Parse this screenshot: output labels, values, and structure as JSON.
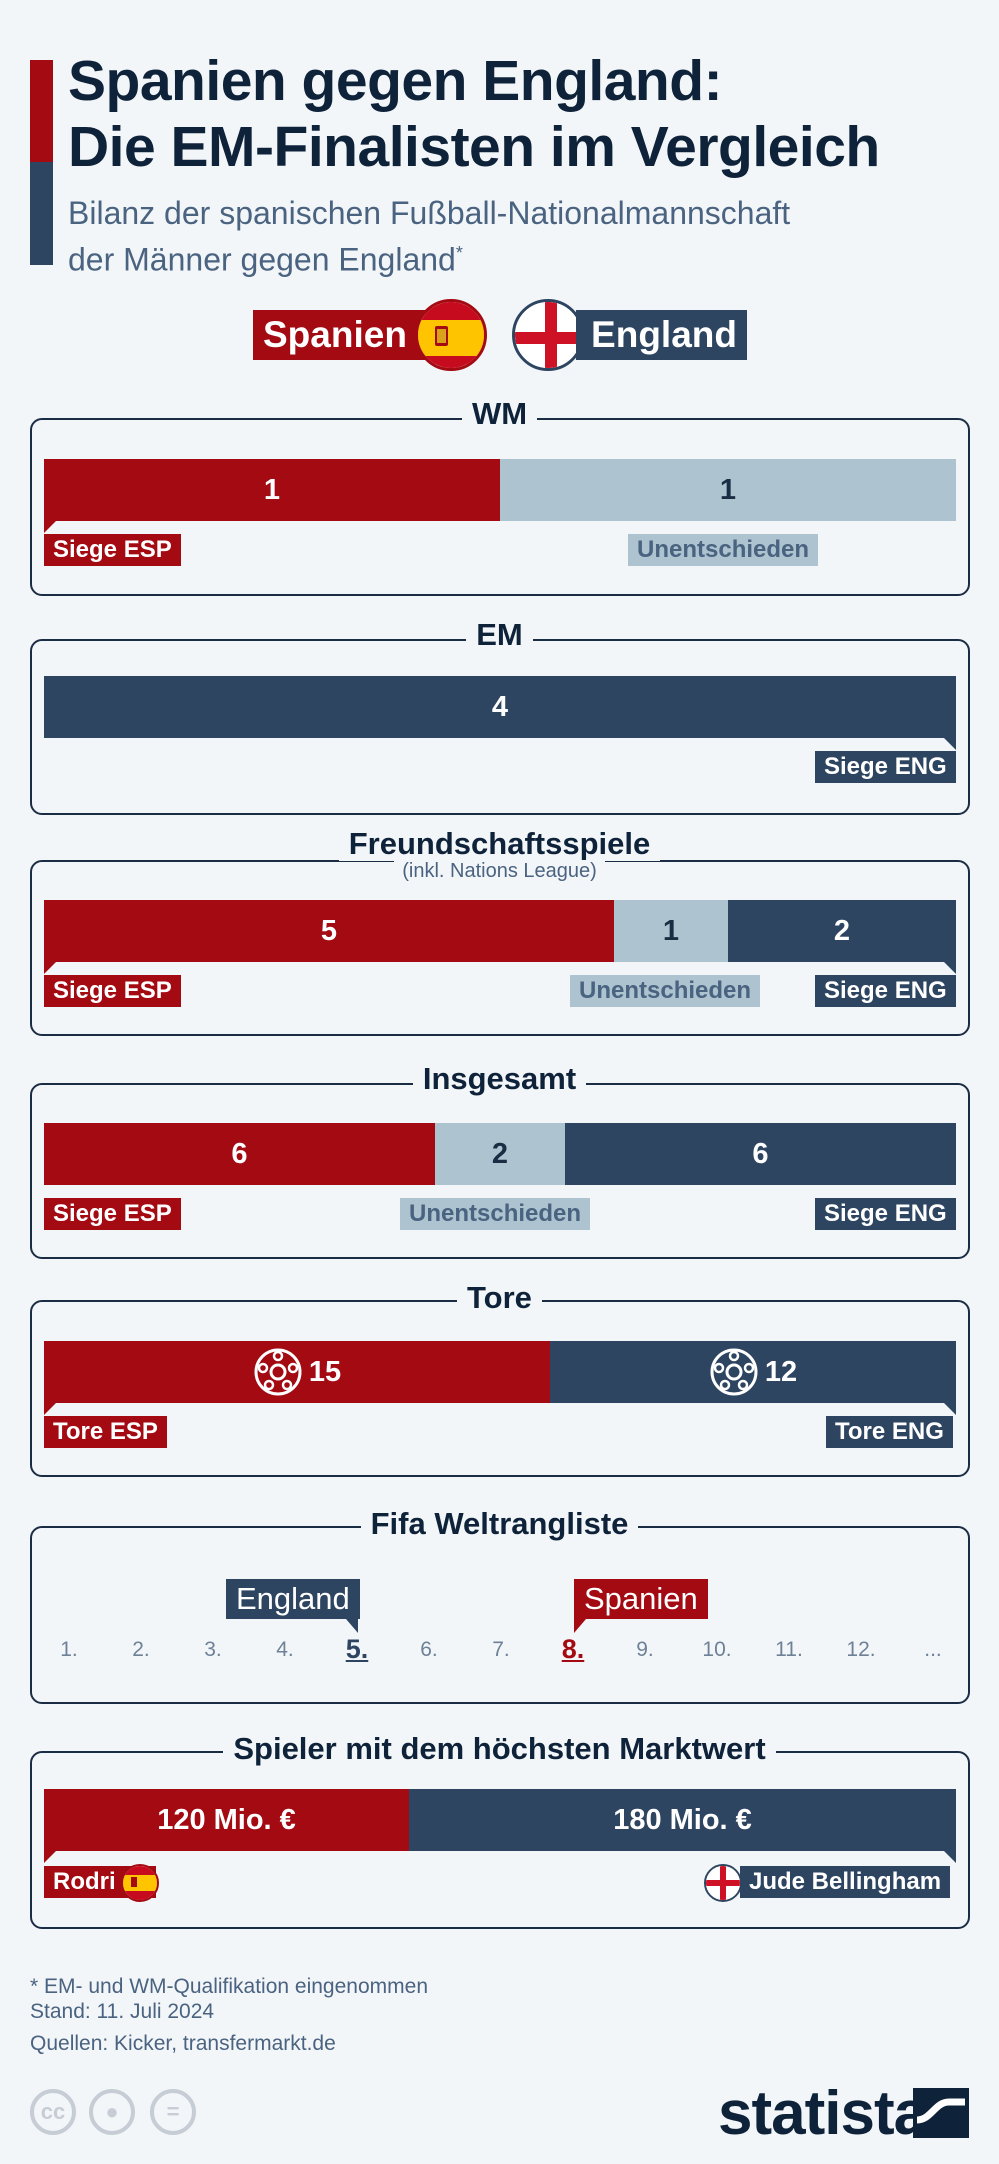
{
  "header": {
    "title_line1": "Spanien gegen England:",
    "title_line2": "Die EM-Finalisten im Vergleich",
    "subtitle_line1": "Bilanz der spanischen Fußball-Nationalmannschaft",
    "subtitle_line2": "der Männer gegen England",
    "subtitle_mark": "*"
  },
  "teams": {
    "esp": "Spanien",
    "eng": "England"
  },
  "labels": {
    "wins_esp": "Siege ESP",
    "wins_eng": "Siege ENG",
    "draws": "Unentschieden",
    "goals_esp": "Tore ESP",
    "goals_eng": "Tore ENG"
  },
  "colors": {
    "esp": "#a30a12",
    "draw": "#adc3cf",
    "eng": "#2e4561"
  },
  "chart_data": [
    {
      "type": "bar",
      "title": "WM",
      "categories": [
        "Siege ESP",
        "Unentschieden",
        "Siege ENG"
      ],
      "values": [
        1,
        1,
        0
      ]
    },
    {
      "type": "bar",
      "title": "EM",
      "categories": [
        "Siege ESP",
        "Unentschieden",
        "Siege ENG"
      ],
      "values": [
        0,
        0,
        4
      ]
    },
    {
      "type": "bar",
      "title": "Freundschaftsspiele",
      "subtitle": "(inkl. Nations League)",
      "categories": [
        "Siege ESP",
        "Unentschieden",
        "Siege ENG"
      ],
      "values": [
        5,
        1,
        2
      ]
    },
    {
      "type": "bar",
      "title": "Insgesamt",
      "categories": [
        "Siege ESP",
        "Unentschieden",
        "Siege ENG"
      ],
      "values": [
        6,
        2,
        6
      ]
    },
    {
      "type": "bar",
      "title": "Tore",
      "categories": [
        "Tore ESP",
        "Tore ENG"
      ],
      "values": [
        15,
        12
      ]
    },
    {
      "type": "table",
      "title": "Fifa Weltrangliste",
      "ticks": [
        "1.",
        "2.",
        "3.",
        "4.",
        "5.",
        "6.",
        "7.",
        "8.",
        "9.",
        "10.",
        "11.",
        "12.",
        "..."
      ],
      "rank_eng": 5,
      "rank_esp": 8
    },
    {
      "type": "bar",
      "title": "Spieler mit dem höchsten Marktwert",
      "categories": [
        "Rodri",
        "Jude Bellingham"
      ],
      "values": [
        120,
        180
      ],
      "value_labels": [
        "120 Mio. €",
        "180 Mio. €"
      ]
    }
  ],
  "footer": {
    "note": "* EM- und WM-Qualifikation eingenommen",
    "date": "Stand: 11. Juli 2024",
    "sources": "Quellen: Kicker, transfermarkt.de",
    "brand": "statista"
  }
}
